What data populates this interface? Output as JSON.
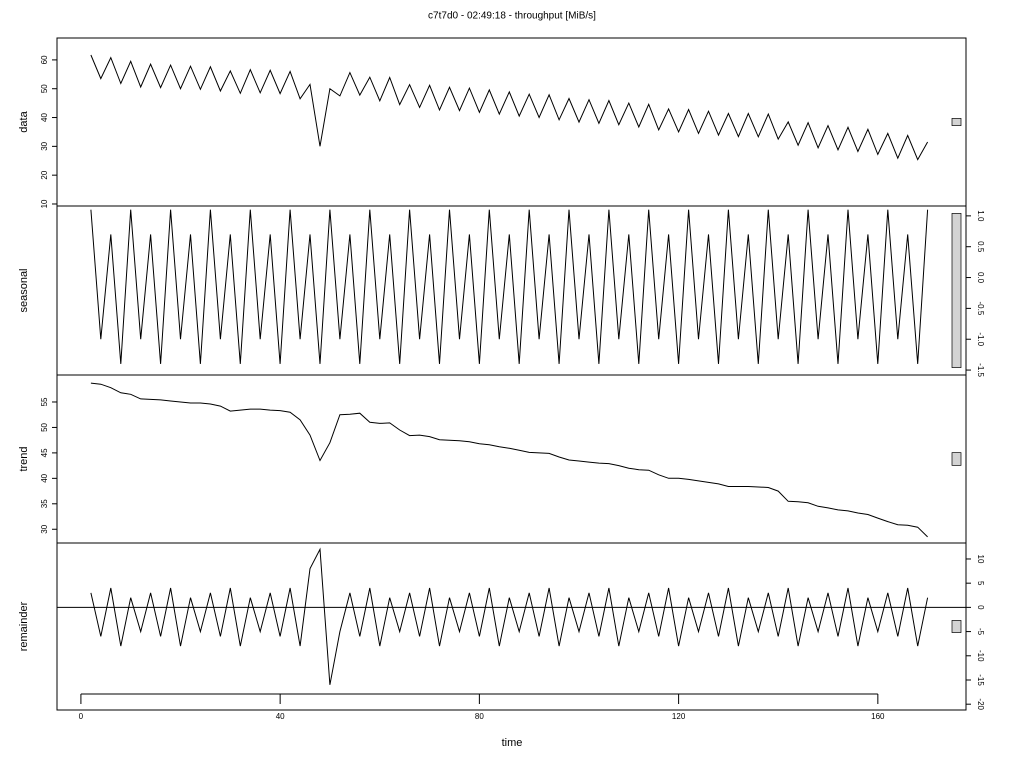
{
  "chart_data": {
    "type": "line",
    "title": "c7t7d0 - 02:49:18 - throughput [MiB/s]",
    "xlabel": "time",
    "xlim": [
      -4.8,
      177.7
    ],
    "xticks": [
      0,
      40,
      80,
      120,
      160
    ],
    "color": "#000000",
    "x": [
      2,
      4,
      6,
      8,
      10,
      12,
      14,
      16,
      18,
      20,
      22,
      24,
      26,
      28,
      30,
      32,
      34,
      36,
      38,
      40,
      42,
      44,
      46,
      48,
      50,
      52,
      54,
      56,
      58,
      60,
      62,
      64,
      66,
      68,
      70,
      72,
      74,
      76,
      78,
      80,
      82,
      84,
      86,
      88,
      90,
      92,
      94,
      96,
      98,
      100,
      102,
      104,
      106,
      108,
      110,
      112,
      114,
      116,
      118,
      120,
      122,
      124,
      126,
      128,
      130,
      132,
      134,
      136,
      138,
      140,
      142,
      144,
      146,
      148,
      150,
      152,
      154,
      156,
      158,
      160,
      162,
      164,
      166,
      168,
      170
    ],
    "panels": [
      {
        "ylabel": "data",
        "axis_side": "left",
        "ylim": [
          9.3,
          67.6
        ],
        "yticks": [
          10,
          20,
          30,
          40,
          50,
          60
        ],
        "values": [
          61.7,
          53.5,
          60.8,
          51.8,
          59.5,
          50.6,
          58.5,
          50.4,
          58.2,
          50.0,
          57.8,
          49.8,
          57.6,
          49.2,
          56.2,
          48.4,
          56.6,
          48.6,
          56.4,
          48.3,
          56.0,
          46.5,
          51.5,
          30,
          50,
          47.5,
          55.6,
          47.8,
          54,
          45.8,
          53.9,
          44.5,
          51.4,
          43.5,
          51.2,
          42.6,
          50.5,
          42.4,
          50.2,
          41.8,
          49.6,
          41.2,
          48.9,
          40.5,
          48.1,
          40.0,
          47.9,
          39.2,
          46.6,
          38.4,
          46.2,
          38.0,
          45.9,
          37.5,
          45.0,
          36.7,
          44.6,
          35.7,
          43.0,
          35.0,
          42.8,
          34.5,
          42.2,
          33.9,
          41.4,
          33.4,
          41.4,
          33.3,
          41.2,
          32.5,
          38.5,
          30.4,
          38.2,
          29.5,
          37.2,
          28.8,
          36.6,
          28.2,
          35.9,
          27.2,
          34.5,
          25.9,
          33.8,
          25.4,
          31.5
        ]
      },
      {
        "ylabel": "seasonal",
        "axis_side": "right",
        "ylim": [
          -1.58,
          1.16
        ],
        "yticks": [
          -1.5,
          {
            "value": -1,
            "label": "-1.0"
          },
          -0.5,
          {
            "value": 0,
            "label": "0.0"
          },
          0.5,
          {
            "value": 1,
            "label": "1.0"
          }
        ],
        "values": [
          1.1,
          -1.0,
          0.7,
          -1.4,
          1.1,
          -1.0,
          0.7,
          -1.4,
          1.1,
          -1.0,
          0.7,
          -1.4,
          1.1,
          -1.0,
          0.7,
          -1.4,
          1.1,
          -1.0,
          0.7,
          -1.4,
          1.1,
          -1.0,
          0.7,
          -1.4,
          1.1,
          -1.0,
          0.7,
          -1.4,
          1.1,
          -1.0,
          0.7,
          -1.4,
          1.1,
          -1.0,
          0.7,
          -1.4,
          1.1,
          -1.0,
          0.7,
          -1.4,
          1.1,
          -1.0,
          0.7,
          -1.4,
          1.1,
          -1.0,
          0.7,
          -1.4,
          1.1,
          -1.0,
          0.7,
          -1.4,
          1.1,
          -1.0,
          0.7,
          -1.4,
          1.1,
          -1.0,
          0.7,
          -1.4,
          1.1,
          -1.0,
          0.7,
          -1.4,
          1.1,
          -1.0,
          0.7,
          -1.4,
          1.1,
          -1.0,
          0.7,
          -1.4,
          1.1,
          -1.0,
          0.7,
          -1.4,
          1.1,
          -1.0,
          0.7,
          -1.4,
          1.1,
          -1.0,
          0.7,
          -1.4,
          1.1
        ]
      },
      {
        "ylabel": "trend",
        "axis_side": "left",
        "ylim": [
          27.3,
          60.3
        ],
        "yticks": [
          30,
          35,
          40,
          45,
          50,
          55
        ],
        "values": [
          58.7,
          58.5,
          57.8,
          56.8,
          56.5,
          55.6,
          55.5,
          55.4,
          55.2,
          55.0,
          54.8,
          54.8,
          54.6,
          54.2,
          53.2,
          53.4,
          53.6,
          53.6,
          53.4,
          53.3,
          53.0,
          51.5,
          48.5,
          43.5,
          47,
          52.5,
          52.6,
          52.8,
          51,
          50.8,
          50.9,
          49.5,
          48.4,
          48.5,
          48.2,
          47.6,
          47.5,
          47.4,
          47.2,
          46.8,
          46.6,
          46.2,
          45.9,
          45.5,
          45.1,
          45.0,
          44.9,
          44.2,
          43.6,
          43.4,
          43.2,
          43.0,
          42.9,
          42.5,
          42.0,
          41.7,
          41.6,
          40.7,
          40.0,
          40.0,
          39.8,
          39.5,
          39.2,
          38.9,
          38.4,
          38.4,
          38.4,
          38.3,
          38.2,
          37.5,
          35.5,
          35.4,
          35.2,
          34.5,
          34.2,
          33.8,
          33.6,
          33.2,
          32.9,
          32.2,
          31.5,
          30.9,
          30.8,
          30.4,
          28.5
        ]
      },
      {
        "ylabel": "remainder",
        "axis_side": "right",
        "ylim": [
          -21.2,
          13.3
        ],
        "yticks": [
          -20,
          -15,
          -10,
          -5,
          0,
          5,
          10
        ],
        "values": [
          3,
          -6,
          4,
          -8,
          2,
          -5,
          3,
          -6,
          4,
          -8,
          2,
          -5,
          3,
          -6,
          4,
          -8,
          2,
          -5,
          3,
          -6,
          4,
          -8,
          8,
          12,
          -16,
          -5,
          3,
          -6,
          4,
          -8,
          2,
          -5,
          3,
          -6,
          4,
          -8,
          2,
          -5,
          3,
          -6,
          4,
          -8,
          2,
          -5,
          3,
          -6,
          4,
          -8,
          2,
          -5,
          3,
          -6,
          4,
          -8,
          2,
          -5,
          3,
          -6,
          4,
          -8,
          2,
          -5,
          3,
          -6,
          4,
          -8,
          2,
          -5,
          3,
          -6,
          4,
          -8,
          2,
          -5,
          3,
          -6,
          4,
          -8,
          2,
          -5,
          3,
          -6,
          4,
          -8,
          2
        ]
      }
    ]
  }
}
